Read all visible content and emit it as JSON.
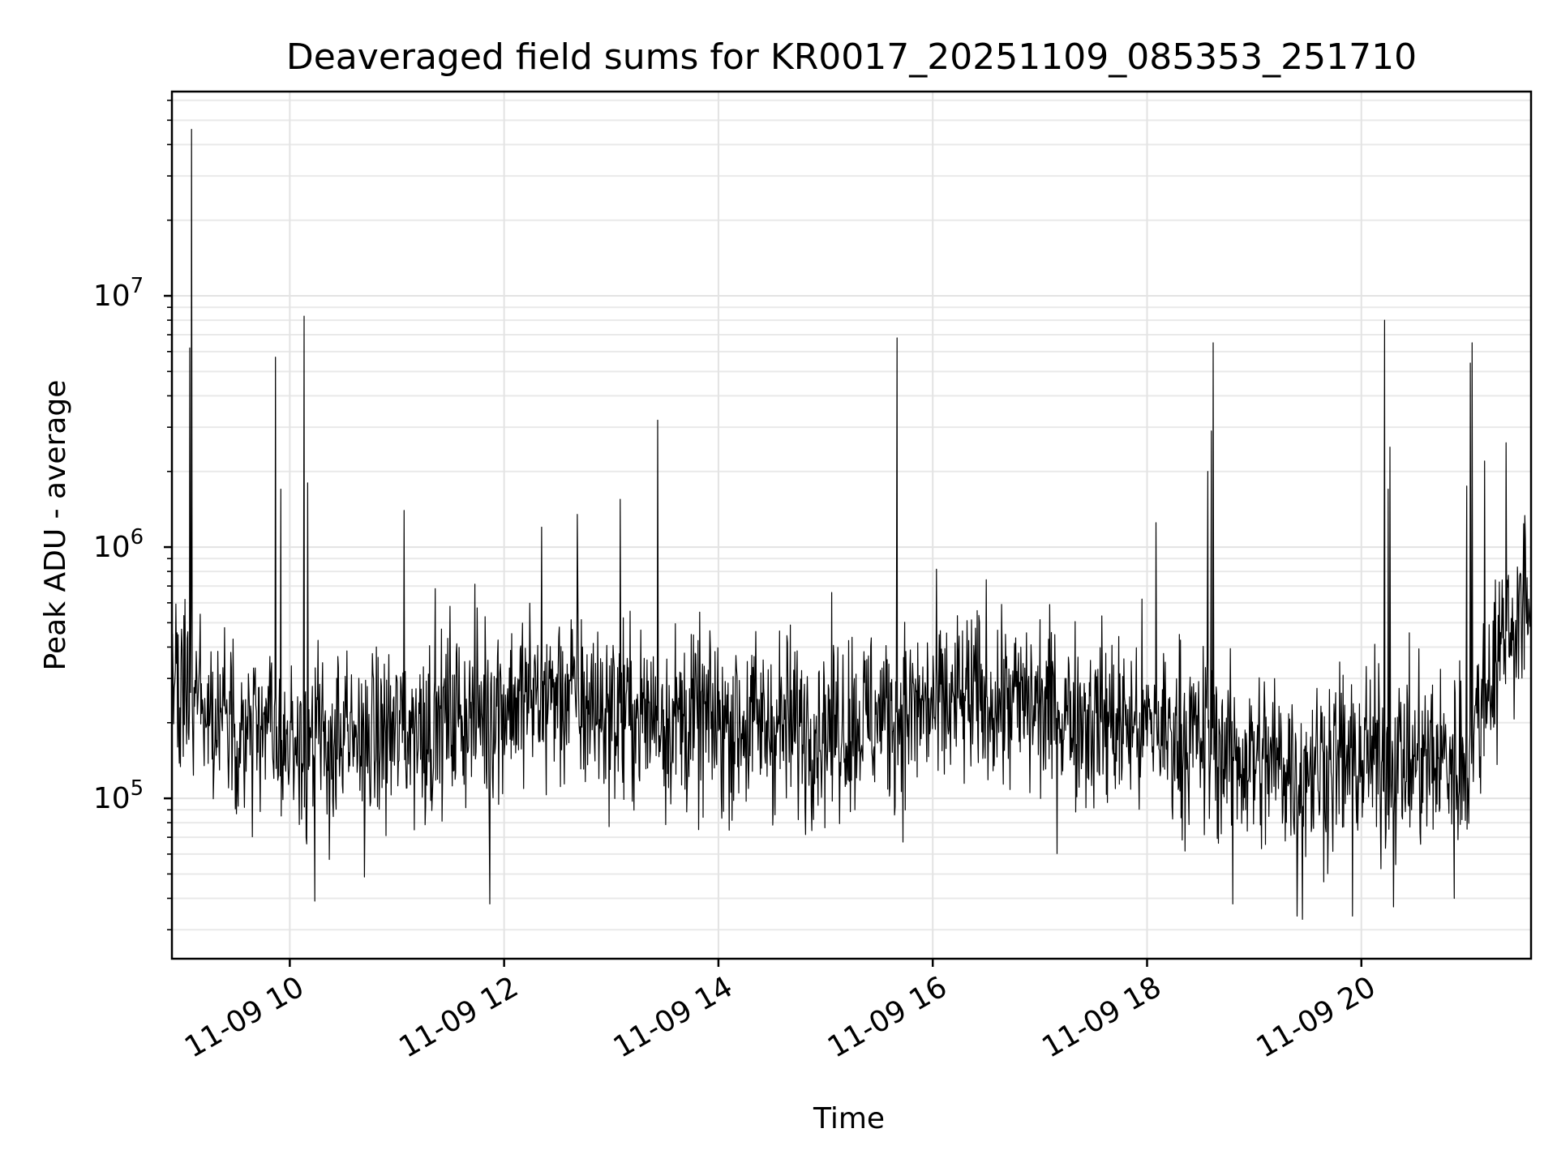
{
  "chart_data": {
    "type": "line",
    "title": "Deaveraged field sums for KR0017_20251109_085353_251710",
    "xlabel": "Time",
    "ylabel": "Peak ADU - average",
    "xlim": [
      "2025-11-09 08:54",
      "2025-11-09 21:35"
    ],
    "ylim": [
      23000,
      65000000
    ],
    "yscale": "log",
    "grid": true,
    "line_color": "#000000",
    "x_ticks": [
      {
        "t": "2025-11-09 10:00",
        "label": "11-09 10"
      },
      {
        "t": "2025-11-09 12:00",
        "label": "11-09 12"
      },
      {
        "t": "2025-11-09 14:00",
        "label": "11-09 14"
      },
      {
        "t": "2025-11-09 16:00",
        "label": "11-09 16"
      },
      {
        "t": "2025-11-09 18:00",
        "label": "11-09 18"
      },
      {
        "t": "2025-11-09 20:00",
        "label": "11-09 20"
      }
    ],
    "y_ticks": [
      {
        "value": 100000,
        "base": "10",
        "exp": "5"
      },
      {
        "value": 1000000,
        "base": "10",
        "exp": "6"
      },
      {
        "value": 10000000,
        "base": "10",
        "exp": "7"
      }
    ],
    "spikes": [
      {
        "t": "2025-11-09 09:05",
        "y": 46000000
      },
      {
        "t": "2025-11-09 09:04",
        "y": 6200000
      },
      {
        "t": "2025-11-09 09:52",
        "y": 5700000
      },
      {
        "t": "2025-11-09 09:55",
        "y": 1700000
      },
      {
        "t": "2025-11-09 10:08",
        "y": 8300000
      },
      {
        "t": "2025-11-09 10:14",
        "y": 7800000
      },
      {
        "t": "2025-11-09 10:10",
        "y": 1800000
      },
      {
        "t": "2025-11-09 11:04",
        "y": 1400000
      },
      {
        "t": "2025-11-09 12:21",
        "y": 1200000
      },
      {
        "t": "2025-11-09 12:41",
        "y": 1350000
      },
      {
        "t": "2025-11-09 13:05",
        "y": 1550000
      },
      {
        "t": "2025-11-09 13:26",
        "y": 3200000
      },
      {
        "t": "2025-11-09 15:40",
        "y": 6800000
      },
      {
        "t": "2025-11-09 18:05",
        "y": 1250000
      },
      {
        "t": "2025-11-09 18:34",
        "y": 2000000
      },
      {
        "t": "2025-11-09 18:37",
        "y": 6500000
      },
      {
        "t": "2025-11-09 18:36",
        "y": 2900000
      },
      {
        "t": "2025-11-09 20:13",
        "y": 8000000
      },
      {
        "t": "2025-11-09 20:16",
        "y": 2500000
      },
      {
        "t": "2025-11-09 20:15",
        "y": 1700000
      },
      {
        "t": "2025-11-09 20:59",
        "y": 1750000
      },
      {
        "t": "2025-11-09 21:01",
        "y": 5400000
      },
      {
        "t": "2025-11-09 21:02",
        "y": 6500000
      },
      {
        "t": "2025-11-09 21:09",
        "y": 2200000
      },
      {
        "t": "2025-11-09 21:21",
        "y": 2600000
      }
    ],
    "baseline": [
      {
        "t": "2025-11-09 08:54",
        "y": 280000
      },
      {
        "t": "2025-11-09 09:30",
        "y": 190000
      },
      {
        "t": "2025-11-09 10:00",
        "y": 175000
      },
      {
        "t": "2025-11-09 10:30",
        "y": 160000
      },
      {
        "t": "2025-11-09 11:00",
        "y": 185000
      },
      {
        "t": "2025-11-09 11:30",
        "y": 210000
      },
      {
        "t": "2025-11-09 12:00",
        "y": 240000
      },
      {
        "t": "2025-11-09 12:30",
        "y": 260000
      },
      {
        "t": "2025-11-09 13:00",
        "y": 220000
      },
      {
        "t": "2025-11-09 13:30",
        "y": 210000
      },
      {
        "t": "2025-11-09 14:00",
        "y": 200000
      },
      {
        "t": "2025-11-09 15:00",
        "y": 195000
      },
      {
        "t": "2025-11-09 16:00",
        "y": 230000
      },
      {
        "t": "2025-11-09 16:30",
        "y": 250000
      },
      {
        "t": "2025-11-09 17:00",
        "y": 230000
      },
      {
        "t": "2025-11-09 17:30",
        "y": 210000
      },
      {
        "t": "2025-11-09 18:00",
        "y": 190000
      },
      {
        "t": "2025-11-09 18:30",
        "y": 170000
      },
      {
        "t": "2025-11-09 19:00",
        "y": 140000
      },
      {
        "t": "2025-11-09 19:30",
        "y": 135000
      },
      {
        "t": "2025-11-09 20:00",
        "y": 145000
      },
      {
        "t": "2025-11-09 20:30",
        "y": 140000
      },
      {
        "t": "2025-11-09 21:00",
        "y": 145000
      },
      {
        "t": "2025-11-09 21:10",
        "y": 280000
      },
      {
        "t": "2025-11-09 21:20",
        "y": 450000
      },
      {
        "t": "2025-11-09 21:35",
        "y": 600000
      }
    ],
    "dips": [
      {
        "t": "2025-11-09 10:14",
        "y": 39000
      },
      {
        "t": "2025-11-09 11:52",
        "y": 38000
      },
      {
        "t": "2025-11-09 18:48",
        "y": 38000
      },
      {
        "t": "2025-11-09 19:24",
        "y": 34000
      },
      {
        "t": "2025-11-09 19:27",
        "y": 33000
      },
      {
        "t": "2025-11-09 19:55",
        "y": 34000
      },
      {
        "t": "2025-11-09 20:18",
        "y": 37000
      },
      {
        "t": "2025-11-09 20:52",
        "y": 40000
      }
    ]
  }
}
